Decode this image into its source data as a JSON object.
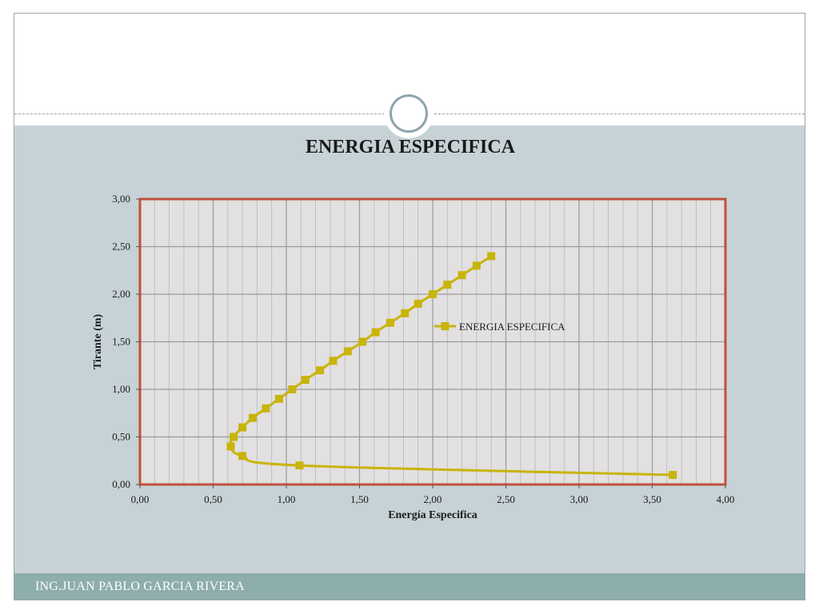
{
  "slide": {
    "footer": "ING.JUAN PABLO GARCIA RIVERA"
  },
  "colors": {
    "series": "#c8b40a",
    "plot_border": "#c0503c",
    "plot_bg": "#e2e0e0",
    "grid": "#b8b8b8",
    "content_band": "#c6d2d6",
    "footer_band": "#8eadad"
  },
  "chart_data": {
    "type": "scatter",
    "title": "ENERGIA ESPECIFICA",
    "xlabel": "Energía Especifica",
    "ylabel": "Tirante (m)",
    "xlim": [
      0,
      4
    ],
    "ylim": [
      0,
      3
    ],
    "x_ticks": [
      "0,00",
      "0,50",
      "1,00",
      "1,50",
      "2,00",
      "2,50",
      "3,00",
      "3,50",
      "4,00"
    ],
    "y_ticks": [
      "0,00",
      "0,50",
      "1,00",
      "1,50",
      "2,00",
      "2,50",
      "3,00"
    ],
    "grid": true,
    "legend_position": "right-inside",
    "series": [
      {
        "name": "ENERGIA ESPECIFICA",
        "marker": "square",
        "line": "smooth",
        "points": [
          {
            "x": 3.64,
            "y": 0.1
          },
          {
            "x": 1.09,
            "y": 0.2
          },
          {
            "x": 0.7,
            "y": 0.3
          },
          {
            "x": 0.62,
            "y": 0.4
          },
          {
            "x": 0.64,
            "y": 0.5
          },
          {
            "x": 0.7,
            "y": 0.6
          },
          {
            "x": 0.77,
            "y": 0.7
          },
          {
            "x": 0.86,
            "y": 0.8
          },
          {
            "x": 0.95,
            "y": 0.9
          },
          {
            "x": 1.04,
            "y": 1.0
          },
          {
            "x": 1.13,
            "y": 1.1
          },
          {
            "x": 1.23,
            "y": 1.2
          },
          {
            "x": 1.32,
            "y": 1.3
          },
          {
            "x": 1.42,
            "y": 1.4
          },
          {
            "x": 1.52,
            "y": 1.5
          },
          {
            "x": 1.61,
            "y": 1.6
          },
          {
            "x": 1.71,
            "y": 1.7
          },
          {
            "x": 1.81,
            "y": 1.8
          },
          {
            "x": 1.9,
            "y": 1.9
          },
          {
            "x": 2.0,
            "y": 2.0
          },
          {
            "x": 2.1,
            "y": 2.1
          },
          {
            "x": 2.2,
            "y": 2.2
          },
          {
            "x": 2.3,
            "y": 2.3
          },
          {
            "x": 2.4,
            "y": 2.4
          }
        ]
      }
    ]
  }
}
